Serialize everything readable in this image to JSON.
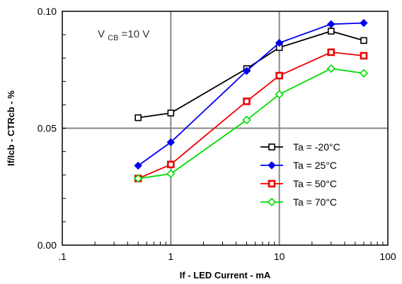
{
  "chart_data": {
    "type": "line",
    "title": "",
    "xlabel": "If - LED Current - mA",
    "ylabel": "If/Icb - CTRcb - %",
    "x_scale": "log",
    "xlim": [
      0.1,
      100
    ],
    "ylim": [
      0,
      0.1
    ],
    "x_tick_labels": [
      ".1",
      "1",
      "10",
      "100"
    ],
    "x_tick_values": [
      0.1,
      1,
      10,
      100
    ],
    "y_tick_labels": [
      "0.00",
      "0.05",
      "0.10"
    ],
    "y_tick_values": [
      0,
      0.05,
      0.1
    ],
    "grid": "major",
    "annotation": {
      "main": "V",
      "sub": "CB",
      "rest": " =10 V"
    },
    "legend_position": "center-right",
    "x": [
      0.5,
      1,
      5,
      10,
      30,
      60
    ],
    "series": [
      {
        "name": "Ta = -20°C",
        "color": "#000000",
        "marker": "open-square",
        "values": [
          0.0545,
          0.0565,
          0.0755,
          0.0845,
          0.0915,
          0.0875
        ]
      },
      {
        "name": "Ta = 25°C",
        "color": "#0000ee",
        "marker": "filled-diamond",
        "values": [
          0.034,
          0.044,
          0.0745,
          0.0865,
          0.0945,
          0.095
        ]
      },
      {
        "name": "Ta = 50°C",
        "color": "#ee0000",
        "marker": "open-square-thick",
        "values": [
          0.0285,
          0.0345,
          0.0615,
          0.0725,
          0.0825,
          0.081
        ]
      },
      {
        "name": "Ta = 70°C",
        "color": "#00dd00",
        "marker": "open-diamond",
        "values": [
          0.0285,
          0.0305,
          0.0535,
          0.0645,
          0.0755,
          0.0735
        ]
      }
    ]
  }
}
